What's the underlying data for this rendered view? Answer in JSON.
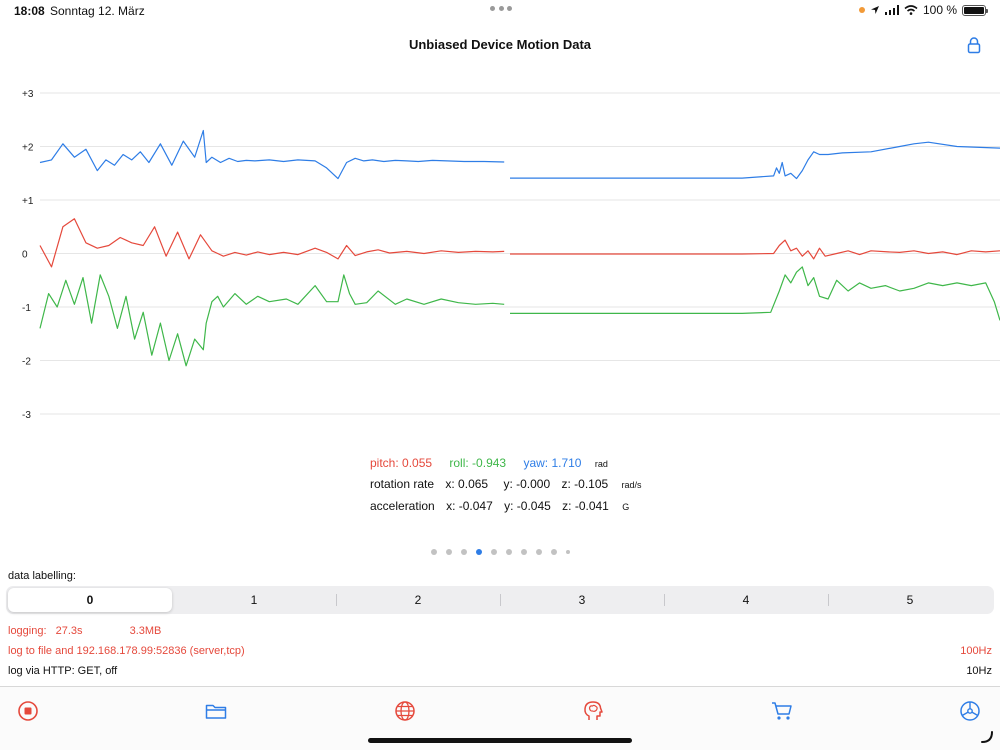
{
  "status_bar": {
    "time": "18:08",
    "date": "Sonntag 12. März",
    "battery": "100 %"
  },
  "nav": {
    "title": "Unbiased Device Motion Data",
    "lock_icon": "lock-icon"
  },
  "chart_data": {
    "type": "line",
    "title": "",
    "xlabel": "",
    "ylabel": "",
    "ylim": [
      -3,
      3
    ],
    "y_ticks": [
      "+3",
      "+2",
      "+1",
      "0",
      "-1",
      "-2",
      "-3"
    ],
    "grid": true,
    "series": [
      {
        "color": "#2e7de6",
        "x": [
          0,
          4,
          8,
          12,
          16,
          20,
          23,
          26,
          29,
          32,
          35,
          38,
          42,
          46,
          50,
          54,
          57,
          58,
          60,
          63,
          66,
          69,
          72,
          75,
          80,
          85,
          90,
          96,
          100,
          104,
          107,
          110,
          113,
          116,
          120,
          124,
          128,
          132,
          137,
          142,
          148,
          155,
          162
        ],
        "y": [
          1.7,
          1.75,
          2.05,
          1.8,
          1.95,
          1.55,
          1.75,
          1.65,
          1.85,
          1.75,
          1.9,
          1.7,
          2.05,
          1.65,
          2.1,
          1.8,
          2.3,
          1.7,
          1.8,
          1.7,
          1.78,
          1.72,
          1.74,
          1.73,
          1.75,
          1.72,
          1.75,
          1.73,
          1.6,
          1.4,
          1.7,
          1.78,
          1.73,
          1.75,
          1.72,
          1.74,
          1.73,
          1.72,
          1.74,
          1.73,
          1.72,
          1.72,
          1.71
        ]
      },
      {
        "color": "#2e7de6",
        "x": [
          164,
          175,
          190,
          200,
          215,
          230,
          245,
          256,
          257,
          258,
          259,
          260,
          262,
          264,
          266,
          268,
          270,
          272,
          275,
          280,
          290,
          300,
          305,
          310,
          320,
          335
        ],
        "y": [
          1.41,
          1.41,
          1.41,
          1.41,
          1.41,
          1.41,
          1.41,
          1.45,
          1.6,
          1.5,
          1.7,
          1.45,
          1.5,
          1.4,
          1.55,
          1.75,
          1.9,
          1.85,
          1.85,
          1.88,
          1.9,
          2.0,
          2.05,
          2.08,
          2.0,
          1.97
        ]
      },
      {
        "color": "#e5493c",
        "x": [
          0,
          4,
          8,
          12,
          16,
          20,
          24,
          28,
          32,
          36,
          40,
          44,
          48,
          52,
          56,
          60,
          62,
          64,
          68,
          72,
          76,
          80,
          85,
          90,
          96,
          100,
          104,
          107,
          110,
          114,
          118,
          122,
          128,
          134,
          140,
          146,
          152,
          158,
          162
        ],
        "y": [
          0.15,
          -0.25,
          0.5,
          0.65,
          0.2,
          0.1,
          0.15,
          0.3,
          0.2,
          0.15,
          0.5,
          -0.05,
          0.4,
          -0.1,
          0.35,
          0.05,
          0.0,
          -0.05,
          0.02,
          -0.03,
          0.03,
          -0.02,
          0.02,
          -0.02,
          0.1,
          0.02,
          -0.1,
          0.15,
          -0.04,
          0.03,
          0.07,
          0.01,
          0.04,
          0.0,
          0.05,
          0.02,
          0.04,
          0.03,
          0.04
        ]
      },
      {
        "color": "#e5493c",
        "x": [
          164,
          175,
          190,
          200,
          215,
          230,
          245,
          256,
          258,
          260,
          262,
          264,
          266,
          268,
          270,
          272,
          274,
          278,
          282,
          286,
          290,
          296,
          300,
          305,
          310,
          315,
          320,
          325,
          330,
          335
        ],
        "y": [
          -0.01,
          -0.01,
          -0.01,
          -0.01,
          -0.01,
          -0.01,
          -0.01,
          0.0,
          0.15,
          0.25,
          0.05,
          0.1,
          -0.05,
          0.05,
          -0.1,
          0.1,
          -0.05,
          0.0,
          0.05,
          -0.02,
          0.05,
          0.03,
          0.02,
          0.05,
          0.0,
          0.03,
          -0.02,
          0.05,
          0.03,
          0.05
        ]
      },
      {
        "color": "#3fb74a",
        "x": [
          0,
          3,
          6,
          9,
          12,
          15,
          18,
          21,
          24,
          27,
          30,
          33,
          36,
          39,
          42,
          45,
          48,
          51,
          54,
          57,
          58,
          60,
          62,
          64,
          68,
          72,
          76,
          80,
          86,
          90,
          96,
          100,
          104,
          106,
          108,
          110,
          114,
          118,
          124,
          128,
          134,
          140,
          146,
          152,
          158,
          162
        ],
        "y": [
          -1.4,
          -0.75,
          -1.0,
          -0.5,
          -0.95,
          -0.45,
          -1.3,
          -0.4,
          -0.8,
          -1.4,
          -0.8,
          -1.6,
          -1.1,
          -1.9,
          -1.3,
          -2.0,
          -1.5,
          -2.1,
          -1.6,
          -1.8,
          -1.3,
          -0.9,
          -0.8,
          -1.0,
          -0.75,
          -0.95,
          -0.8,
          -0.9,
          -0.85,
          -0.95,
          -0.6,
          -0.9,
          -0.9,
          -0.4,
          -0.75,
          -0.95,
          -0.92,
          -0.7,
          -0.95,
          -0.85,
          -0.95,
          -0.85,
          -0.92,
          -0.95,
          -0.93,
          -0.95
        ]
      },
      {
        "color": "#3fb74a",
        "x": [
          164,
          175,
          190,
          200,
          215,
          230,
          245,
          255,
          258,
          260,
          262,
          264,
          266,
          268,
          270,
          272,
          275,
          278,
          282,
          286,
          290,
          295,
          300,
          305,
          310,
          315,
          320,
          325,
          330,
          333,
          335
        ],
        "y": [
          -1.12,
          -1.12,
          -1.12,
          -1.12,
          -1.12,
          -1.12,
          -1.12,
          -1.1,
          -0.7,
          -0.4,
          -0.55,
          -0.35,
          -0.25,
          -0.6,
          -0.45,
          -0.8,
          -0.85,
          -0.5,
          -0.7,
          -0.55,
          -0.65,
          -0.6,
          -0.7,
          -0.65,
          -0.55,
          -0.6,
          -0.55,
          -0.6,
          -0.55,
          -0.9,
          -1.25
        ]
      }
    ]
  },
  "readouts": {
    "pitch": "pitch: 0.055",
    "roll": "roll: -0.943",
    "yaw": "yaw: 1.710",
    "angle_unit": "rad",
    "rotation_label": "rotation rate",
    "rotation_x": "x: 0.065",
    "rotation_y": "y: -0.000",
    "rotation_z": "z: -0.105",
    "rotation_unit": "rad/s",
    "accel_label": "acceleration",
    "accel_x": "x: -0.047",
    "accel_y": "y: -0.045",
    "accel_z": "z: -0.041",
    "accel_unit": "G"
  },
  "page_control": {
    "count": 10,
    "current": 4
  },
  "labelling": {
    "heading": "data labelling:",
    "segments": [
      "0",
      "1",
      "2",
      "3",
      "4",
      "5"
    ],
    "selected": "0"
  },
  "info": {
    "logging_label": "logging:",
    "logging_time": "27.3s",
    "logging_size": "3.3MB",
    "log_target": "log to file and 192.168.178.99:52836 (server,tcp)",
    "log_target_rate": "100Hz",
    "http": "log via HTTP: GET, off",
    "http_rate": "10Hz"
  },
  "colors": {
    "accent_red": "#e5493c",
    "blue": "#2e7de6",
    "green": "#3fb74a"
  },
  "tab_bar": [
    "stop-record-icon",
    "folder-icon",
    "globe-icon",
    "brain-head-icon",
    "cart-icon",
    "settings-wheel-icon"
  ]
}
